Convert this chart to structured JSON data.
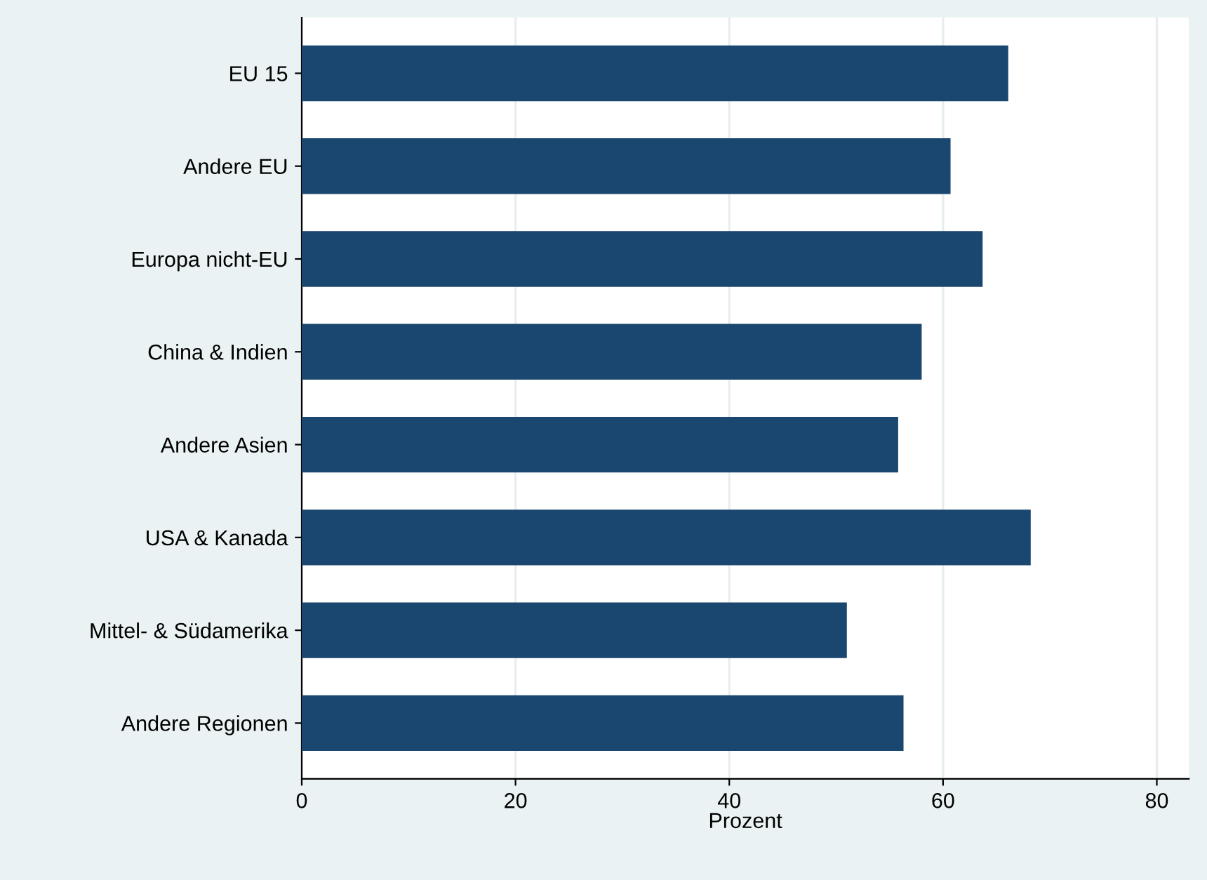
{
  "chart_data": {
    "type": "bar",
    "orientation": "horizontal",
    "xlabel": "Prozent",
    "categories": [
      "EU 15",
      "Andere EU",
      "Europa nicht-EU",
      "China & Indien",
      "Andere Asien",
      "USA & Kanada",
      "Mittel- & Südamerika",
      "Andere Regionen"
    ],
    "values": [
      66.1,
      60.7,
      63.7,
      58.0,
      55.8,
      68.2,
      51.0,
      56.3
    ],
    "color": "#1a476f",
    "xlim": [
      0,
      83
    ],
    "xticks": [
      0,
      20,
      40,
      60,
      80
    ],
    "grid": "x",
    "legend": false
  }
}
